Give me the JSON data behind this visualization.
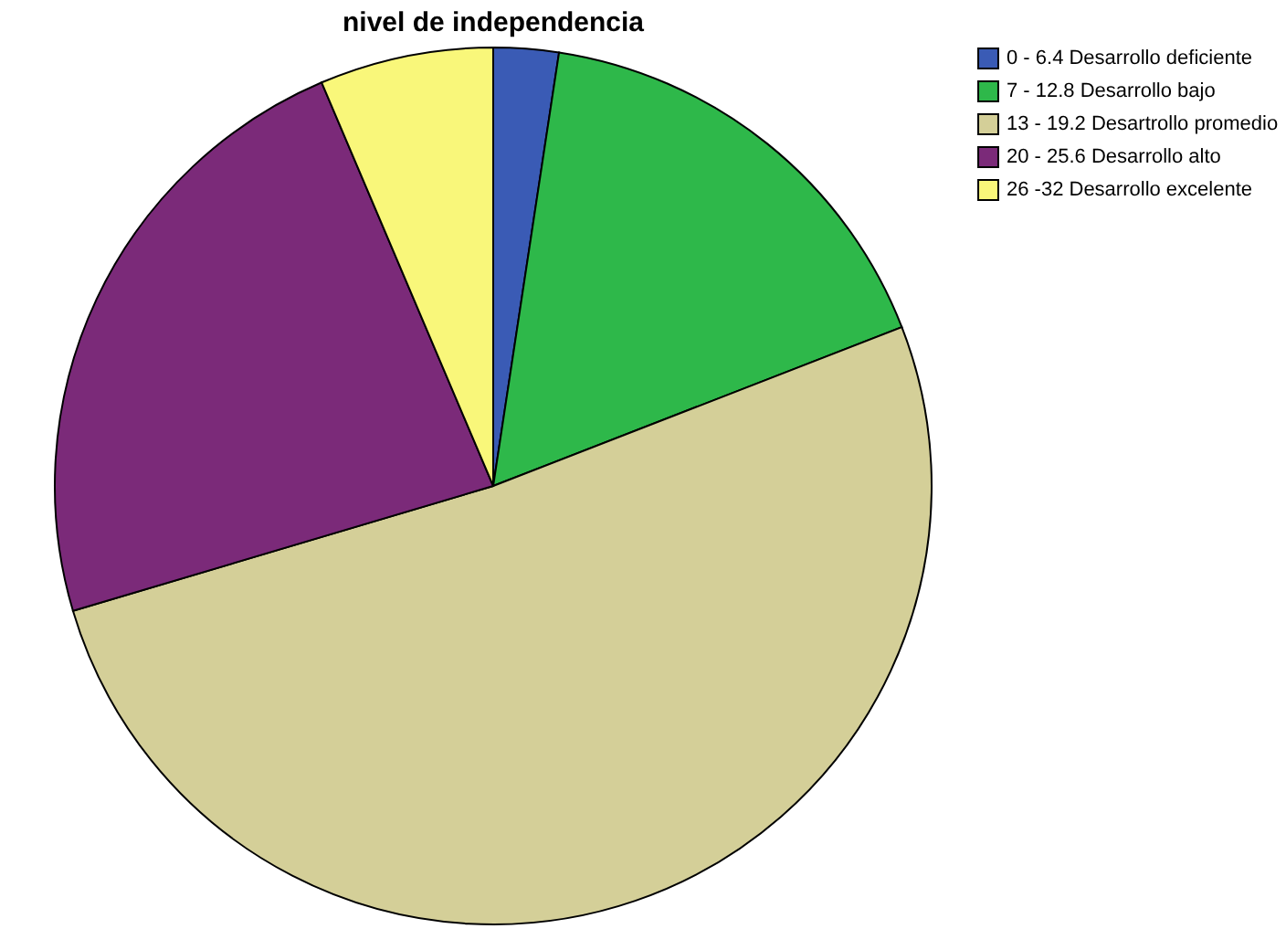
{
  "chart_data": {
    "type": "pie",
    "title": "nivel de independencia",
    "categories": [
      "0 - 6.4 Desarrollo deficiente",
      "7 - 12.8 Desarrollo bajo",
      "13 - 19.2 Desartrollo promedio",
      "20 - 25.6 Desarrollo alto",
      "26 -32 Desarrollo excelente"
    ],
    "values": [
      2.4,
      16.7,
      51.3,
      23.2,
      6.4
    ],
    "colors": [
      "#3a5bb5",
      "#2eb84a",
      "#d4cf98",
      "#7b2a79",
      "#f9f77a"
    ],
    "legend": "top right"
  }
}
